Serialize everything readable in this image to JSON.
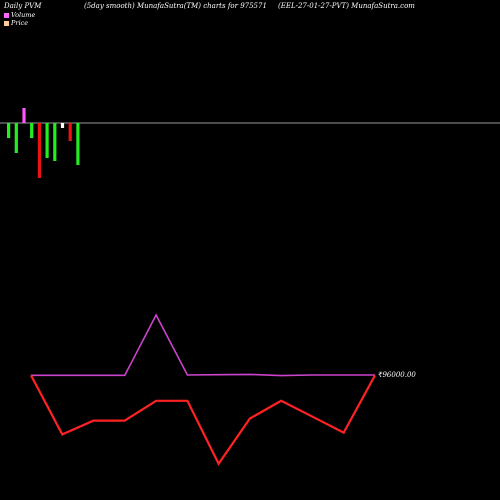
{
  "header": {
    "left": "Daily PVM",
    "center": "(5day smooth) MunafaSutra(TM) charts for 975571",
    "right": "(EEL-27-01-27-PVT) MunafaSutra.com"
  },
  "legend": [
    {
      "label": "Volume",
      "color": "#ff66ff"
    },
    {
      "label": "Price",
      "color": "#ffcc99"
    }
  ],
  "chart_data": {
    "type": "bar+line",
    "volume_bars": {
      "values": [
        -15,
        -30,
        15,
        -15,
        -55,
        -35,
        -38,
        -5,
        -18,
        -42
      ],
      "colors": [
        "#22ee22",
        "#22ee22",
        "#ff55ff",
        "#22ee22",
        "#ee1111",
        "#22ee22",
        "#22ee22",
        "#ffffff",
        "#ee1111",
        "#22ee22"
      ]
    },
    "series": [
      {
        "color": "#cc44cc",
        "values": [
          93.9,
          93.9,
          93.9,
          93.9,
          114.0,
          94.0,
          94.1,
          94.2,
          93.8,
          94.0,
          94.0,
          94.0
        ]
      },
      {
        "color": "#ff2222",
        "values": [
          93.9,
          74.2,
          78.8,
          78.8,
          85.4,
          85.4,
          64.4,
          79.5,
          85.4,
          80.1,
          74.8,
          93.9
        ]
      }
    ],
    "price_label": "₹96000.00"
  }
}
